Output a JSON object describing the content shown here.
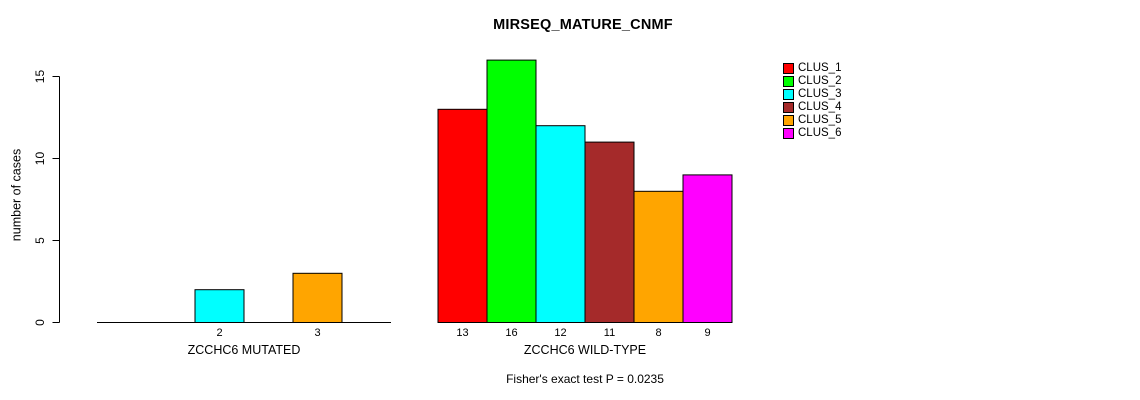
{
  "chart_data": {
    "type": "bar",
    "title": "MIRSEQ_MATURE_CNMF",
    "ylabel": "number of cases",
    "xlabel": "",
    "ylim": [
      0,
      15
    ],
    "yticks": [
      0,
      5,
      10,
      15
    ],
    "grid": false,
    "legend_position": "right",
    "series": [
      "CLUS_1",
      "CLUS_2",
      "CLUS_3",
      "CLUS_4",
      "CLUS_5",
      "CLUS_6"
    ],
    "colors": [
      "#FF0000",
      "#00FF00",
      "#00FFFF",
      "#A52A2A",
      "#FFA500",
      "#FF00FF"
    ],
    "groups": [
      {
        "label": "ZCCHC6 MUTATED",
        "values": [
          0,
          0,
          2,
          0,
          3,
          0
        ]
      },
      {
        "label": "ZCCHC6 WILD-TYPE",
        "values": [
          13,
          16,
          12,
          11,
          8,
          9
        ]
      }
    ],
    "annotation": "Fisher's exact test P = 0.0235"
  },
  "legend": {
    "items": [
      {
        "label": "CLUS_1",
        "color": "#FF0000"
      },
      {
        "label": "CLUS_2",
        "color": "#00FF00"
      },
      {
        "label": "CLUS_3",
        "color": "#00FFFF"
      },
      {
        "label": "CLUS_4",
        "color": "#A52A2A"
      },
      {
        "label": "CLUS_5",
        "color": "#FFA500"
      },
      {
        "label": "CLUS_6",
        "color": "#FF00FF"
      }
    ]
  }
}
